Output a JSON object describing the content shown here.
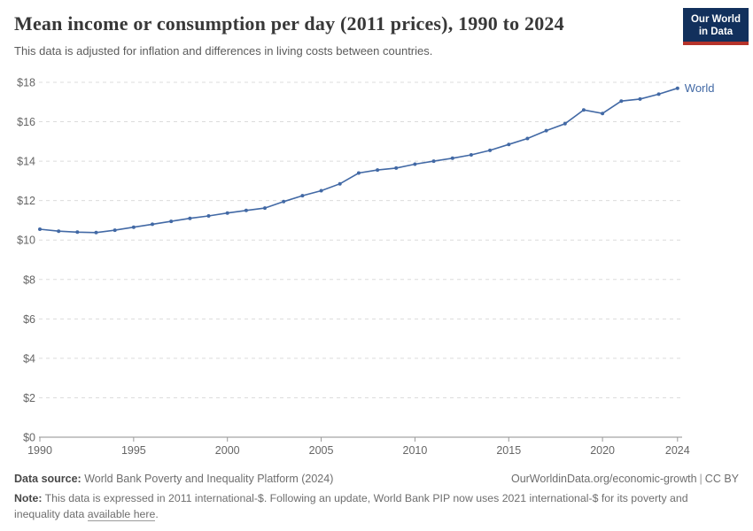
{
  "header": {
    "title": "Mean income or consumption per day (2011 prices), 1990 to 2024",
    "subtitle": "This data is adjusted for inflation and differences in living costs between countries.",
    "logo_line1": "Our World",
    "logo_line2": "in Data",
    "logo_colors": {
      "background": "#12305c",
      "bar": "#b5332a",
      "text": "#ffffff"
    }
  },
  "chart_data": {
    "type": "line",
    "title": "Mean income or consumption per day (2011 prices), 1990 to 2024",
    "xlabel": "",
    "ylabel": "",
    "xlim": [
      1990,
      2024
    ],
    "ylim": [
      0,
      18
    ],
    "grid": "horizontal-dashed",
    "legend_position": "end-of-line",
    "x_tick_labels": [
      "1990",
      "1995",
      "2000",
      "2005",
      "2010",
      "2015",
      "2020",
      "2024"
    ],
    "x_tick_years": [
      1990,
      1995,
      2000,
      2005,
      2010,
      2015,
      2020,
      2024
    ],
    "y_tick_labels": [
      "$0",
      "$2",
      "$4",
      "$6",
      "$8",
      "$10",
      "$12",
      "$14",
      "$16",
      "$18"
    ],
    "y_tick_values": [
      0,
      2,
      4,
      6,
      8,
      10,
      12,
      14,
      16,
      18
    ],
    "series": [
      {
        "name": "World",
        "color": "#4269a5",
        "x": [
          1990,
          1991,
          1992,
          1993,
          1994,
          1995,
          1996,
          1997,
          1998,
          1999,
          2000,
          2001,
          2002,
          2003,
          2004,
          2005,
          2006,
          2007,
          2008,
          2009,
          2010,
          2011,
          2012,
          2013,
          2014,
          2015,
          2016,
          2017,
          2018,
          2019,
          2020,
          2021,
          2022,
          2023,
          2024
        ],
        "values": [
          10.55,
          10.45,
          10.4,
          10.38,
          10.5,
          10.65,
          10.8,
          10.95,
          11.1,
          11.22,
          11.37,
          11.5,
          11.62,
          11.95,
          12.25,
          12.5,
          12.85,
          13.4,
          13.55,
          13.65,
          13.85,
          14.0,
          14.15,
          14.32,
          14.55,
          14.85,
          15.15,
          15.55,
          15.9,
          16.6,
          16.42,
          17.05,
          17.15,
          17.4,
          17.7
        ]
      }
    ]
  },
  "footer": {
    "data_source_label": "Data source:",
    "data_source_value": " World Bank Poverty and Inequality Platform (2024)",
    "url": "OurWorldinData.org/economic-growth",
    "separator": "|",
    "license": "CC BY",
    "note_label": "Note:",
    "note_text": " This data is expressed in 2011 international-$. Following an update, World Bank PIP now uses 2021 international-$ for its poverty and inequality data ",
    "note_link": "available here",
    "note_suffix": "."
  }
}
